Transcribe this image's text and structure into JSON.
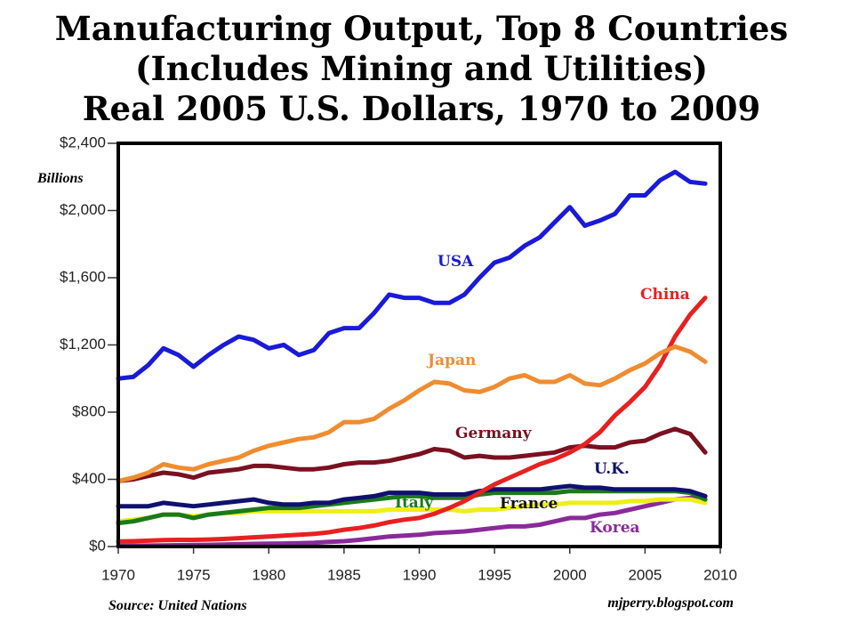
{
  "chart_data": {
    "type": "line",
    "title": [
      "Manufacturing Output, Top 8 Countries",
      "(Includes Mining and Utilities)",
      "Real 2005 U.S. Dollars, 1970 to 2009"
    ],
    "y_label": "Billions",
    "source": "Source: United Nations",
    "credit": "mjperry.blogspot.com",
    "x": [
      1970,
      1971,
      1972,
      1973,
      1974,
      1975,
      1976,
      1977,
      1978,
      1979,
      1980,
      1981,
      1982,
      1983,
      1984,
      1985,
      1986,
      1987,
      1988,
      1989,
      1990,
      1991,
      1992,
      1993,
      1994,
      1995,
      1996,
      1997,
      1998,
      1999,
      2000,
      2001,
      2002,
      2003,
      2004,
      2005,
      2006,
      2007,
      2008,
      2009
    ],
    "xlim": [
      1970,
      2010
    ],
    "xticks": [
      1970,
      1975,
      1980,
      1985,
      1990,
      1995,
      2000,
      2005,
      2010
    ],
    "ylim": [
      0,
      2400
    ],
    "yticks": [
      {
        "value": 0,
        "label": "$0"
      },
      {
        "value": 400,
        "label": "$400"
      },
      {
        "value": 800,
        "label": "$800"
      },
      {
        "value": 1200,
        "label": "$1,200"
      },
      {
        "value": 1600,
        "label": "$1,600"
      },
      {
        "value": 2000,
        "label": "$2,000"
      },
      {
        "value": 2400,
        "label": "$2,400"
      }
    ],
    "series": [
      {
        "name": "Korea",
        "color": "#8a2a9a",
        "values": [
          5,
          5,
          6,
          7,
          8,
          9,
          10,
          12,
          14,
          16,
          17,
          18,
          20,
          23,
          28,
          32,
          40,
          50,
          60,
          65,
          70,
          80,
          85,
          90,
          100,
          110,
          120,
          120,
          130,
          150,
          170,
          170,
          190,
          200,
          220,
          240,
          260,
          280,
          290,
          280
        ]
      },
      {
        "name": "France",
        "color": "#eeee1a",
        "values": [
          150,
          160,
          170,
          190,
          190,
          180,
          190,
          200,
          200,
          210,
          210,
          210,
          210,
          210,
          210,
          210,
          210,
          210,
          220,
          220,
          220,
          220,
          220,
          210,
          220,
          220,
          230,
          240,
          250,
          250,
          260,
          260,
          260,
          260,
          270,
          270,
          280,
          280,
          280,
          260
        ]
      },
      {
        "name": "Italy",
        "color": "#1a7a1a",
        "values": [
          140,
          150,
          170,
          190,
          190,
          170,
          190,
          200,
          210,
          220,
          230,
          230,
          230,
          240,
          250,
          260,
          270,
          280,
          290,
          300,
          300,
          290,
          290,
          290,
          310,
          320,
          320,
          320,
          320,
          320,
          330,
          330,
          330,
          330,
          330,
          330,
          330,
          330,
          320,
          280
        ]
      },
      {
        "name": "U.K.",
        "color": "#101070",
        "values": [
          240,
          240,
          240,
          260,
          250,
          240,
          250,
          260,
          270,
          280,
          260,
          250,
          250,
          260,
          260,
          280,
          290,
          300,
          320,
          320,
          320,
          310,
          310,
          310,
          330,
          340,
          340,
          340,
          340,
          350,
          360,
          350,
          350,
          340,
          340,
          340,
          340,
          340,
          330,
          300
        ]
      },
      {
        "name": "Germany",
        "color": "#7a1020",
        "values": [
          390,
          400,
          420,
          440,
          430,
          410,
          440,
          450,
          460,
          480,
          480,
          470,
          460,
          460,
          470,
          490,
          500,
          500,
          510,
          530,
          550,
          580,
          570,
          530,
          540,
          530,
          530,
          540,
          550,
          560,
          590,
          600,
          590,
          590,
          620,
          630,
          670,
          700,
          670,
          560
        ]
      },
      {
        "name": "China",
        "color": "#e82020",
        "values": [
          30,
          32,
          35,
          38,
          40,
          40,
          42,
          45,
          50,
          55,
          60,
          65,
          70,
          75,
          85,
          100,
          110,
          125,
          145,
          160,
          170,
          195,
          230,
          270,
          320,
          370,
          410,
          450,
          490,
          520,
          560,
          610,
          680,
          780,
          860,
          950,
          1080,
          1250,
          1380,
          1480
        ]
      },
      {
        "name": "Japan",
        "color": "#f08c30",
        "values": [
          390,
          410,
          440,
          490,
          470,
          460,
          490,
          510,
          530,
          570,
          600,
          620,
          640,
          650,
          680,
          740,
          740,
          760,
          820,
          870,
          930,
          980,
          970,
          930,
          920,
          950,
          1000,
          1020,
          980,
          980,
          1020,
          970,
          960,
          1000,
          1050,
          1090,
          1150,
          1190,
          1160,
          1100
        ]
      },
      {
        "name": "USA",
        "color": "#1a1ad8",
        "values": [
          1000,
          1010,
          1080,
          1180,
          1140,
          1070,
          1140,
          1200,
          1250,
          1230,
          1180,
          1200,
          1140,
          1170,
          1270,
          1300,
          1300,
          1390,
          1500,
          1480,
          1480,
          1450,
          1450,
          1500,
          1600,
          1690,
          1720,
          1790,
          1840,
          1930,
          2020,
          1910,
          1940,
          1980,
          2090,
          2090,
          2180,
          2230,
          2170,
          2160
        ]
      }
    ]
  }
}
